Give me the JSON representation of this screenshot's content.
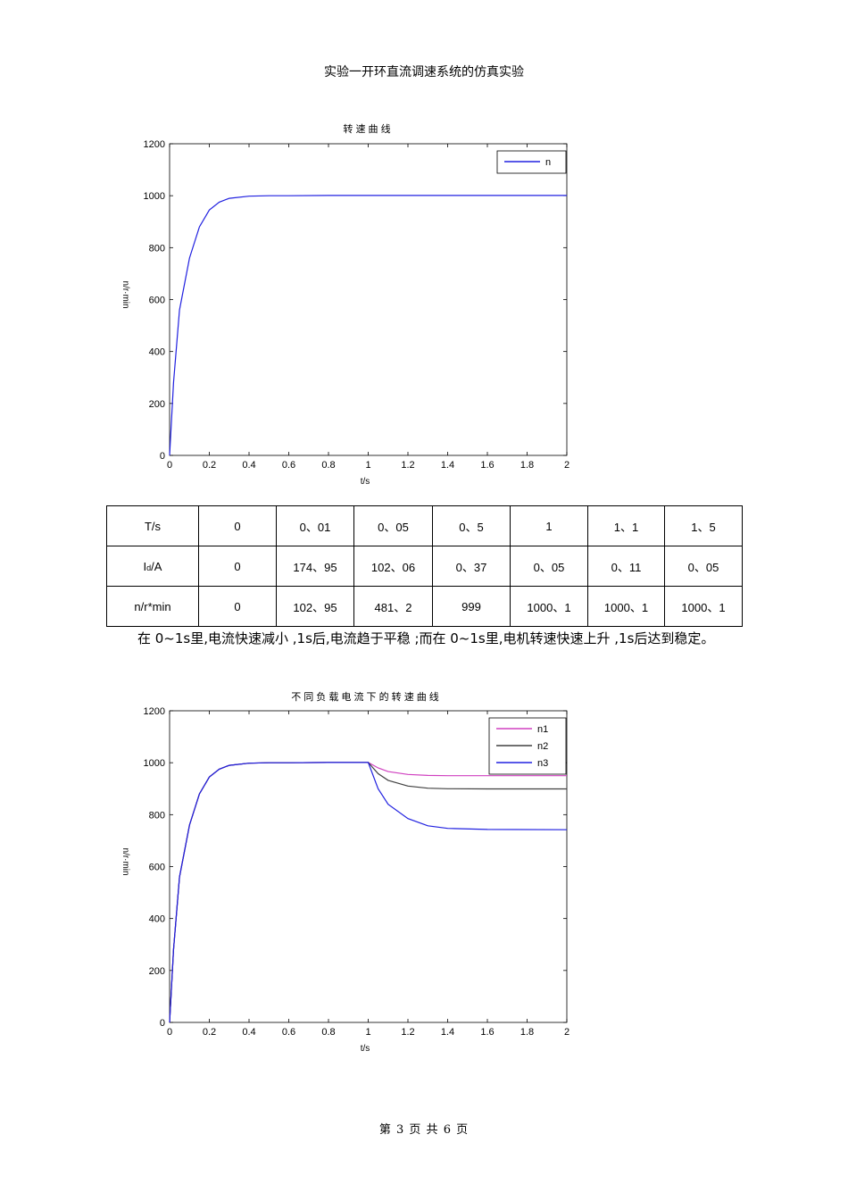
{
  "header": {
    "title": "实验一开环直流调速系统的仿真实验"
  },
  "chart_data": [
    {
      "type": "line",
      "title": "转 速 曲 线",
      "xlabel": "t/s",
      "ylabel": "n/r·min",
      "xlim": [
        0,
        2
      ],
      "ylim": [
        0,
        1200
      ],
      "xticks": [
        "0",
        "0.2",
        "0.4",
        "0.6",
        "0.8",
        "1",
        "1.2",
        "1.4",
        "1.6",
        "1.8",
        "2"
      ],
      "yticks": [
        "0",
        "200",
        "400",
        "600",
        "800",
        "1000",
        "1200"
      ],
      "legend_position": "top-right",
      "series": [
        {
          "name": "n",
          "color": "#2020e0",
          "x": [
            0,
            0.02,
            0.05,
            0.1,
            0.15,
            0.2,
            0.25,
            0.3,
            0.4,
            0.5,
            0.6,
            0.8,
            1.0,
            1.4,
            2.0
          ],
          "y": [
            0,
            280,
            560,
            760,
            880,
            945,
            975,
            990,
            998,
            1000,
            1000,
            1001,
            1001,
            1001,
            1001
          ]
        }
      ]
    },
    {
      "type": "line",
      "title": "不 同 负 载 电 流 下 的 转 速 曲 线",
      "xlabel": "t/s",
      "ylabel": "n/r·min",
      "xlim": [
        0,
        2
      ],
      "ylim": [
        0,
        1200
      ],
      "xticks": [
        "0",
        "0.2",
        "0.4",
        "0.6",
        "0.8",
        "1",
        "1.2",
        "1.4",
        "1.6",
        "1.8",
        "2"
      ],
      "yticks": [
        "0",
        "200",
        "400",
        "600",
        "800",
        "1000",
        "1200"
      ],
      "legend_position": "top-right",
      "series": [
        {
          "name": "n1",
          "color": "#d040c0",
          "x": [
            0,
            0.02,
            0.05,
            0.1,
            0.15,
            0.2,
            0.25,
            0.3,
            0.4,
            0.5,
            0.6,
            0.8,
            1.0,
            1.05,
            1.1,
            1.2,
            1.3,
            1.4,
            1.6,
            2.0
          ],
          "y": [
            0,
            280,
            560,
            760,
            880,
            945,
            975,
            990,
            998,
            1000,
            1000,
            1001,
            1001,
            980,
            966,
            955,
            951,
            950,
            950,
            950
          ]
        },
        {
          "name": "n2",
          "color": "#404040",
          "x": [
            0,
            0.02,
            0.05,
            0.1,
            0.15,
            0.2,
            0.25,
            0.3,
            0.4,
            0.5,
            0.6,
            0.8,
            1.0,
            1.05,
            1.1,
            1.2,
            1.3,
            1.4,
            1.6,
            2.0
          ],
          "y": [
            0,
            280,
            560,
            760,
            880,
            945,
            975,
            990,
            998,
            1000,
            1000,
            1001,
            1001,
            958,
            932,
            910,
            902,
            900,
            899,
            899
          ]
        },
        {
          "name": "n3",
          "color": "#2020e0",
          "x": [
            0,
            0.02,
            0.05,
            0.1,
            0.15,
            0.2,
            0.25,
            0.3,
            0.4,
            0.5,
            0.6,
            0.8,
            1.0,
            1.05,
            1.1,
            1.2,
            1.3,
            1.4,
            1.6,
            2.0
          ],
          "y": [
            0,
            280,
            560,
            760,
            880,
            945,
            975,
            990,
            998,
            1000,
            1000,
            1001,
            1001,
            900,
            840,
            785,
            757,
            747,
            743,
            742
          ]
        }
      ]
    }
  ],
  "table": {
    "rows": [
      [
        "T/s",
        "0",
        "0、01",
        "0、05",
        "0、5",
        "1",
        "1、1",
        "1、5"
      ],
      [
        "Id/A",
        "0",
        "174、95",
        "102、06",
        "0、37",
        "0、05",
        "0、11",
        "0、05"
      ],
      [
        "n/r*min",
        "0",
        "102、95",
        "481、2",
        "999",
        "1000、1",
        "1000、1",
        "1000、1"
      ]
    ],
    "id_label_main": "I",
    "id_label_sub": "d",
    "id_label_tail": "/A"
  },
  "paragraph": "在 0~1s里,电流快速减小 ,1s后,电流趋于平稳 ;而在 0~1s里,电机转速快速上升 ,1s后达到稳定。",
  "footer": {
    "page": "第 3 页 共 6 页"
  }
}
